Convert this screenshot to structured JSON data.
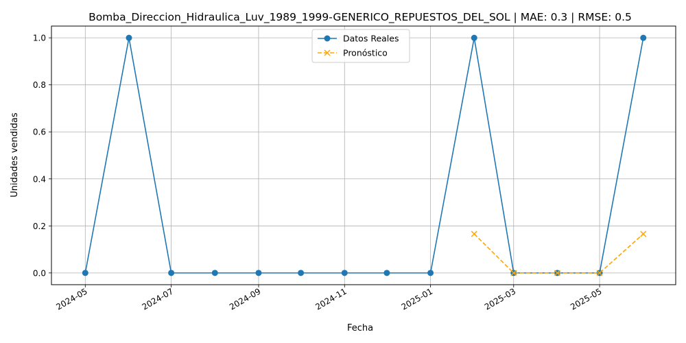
{
  "chart_data": {
    "type": "line",
    "title": "Bomba_Direccion_Hidraulica_Luv_1989_1999-GENERICO_REPUESTOS_DEL_SOL | MAE: 0.3 | RMSE: 0.5",
    "xlabel": "Fecha",
    "ylabel": "Unidades vendidas",
    "xlim": [
      "2024-04-07",
      "2025-06-24"
    ],
    "ylim": [
      -0.05,
      1.05
    ],
    "grid": true,
    "legend_position": "top-center",
    "x_ticks": [
      "2024-05",
      "2024-07",
      "2024-09",
      "2024-11",
      "2025-01",
      "2025-03",
      "2025-05"
    ],
    "x_tick_dates": [
      "2024-05-01",
      "2024-07-01",
      "2024-09-01",
      "2024-11-01",
      "2025-01-01",
      "2025-03-01",
      "2025-05-01"
    ],
    "y_ticks": [
      "0.0",
      "0.2",
      "0.4",
      "0.6",
      "0.8",
      "1.0"
    ],
    "y_tick_values": [
      0.0,
      0.2,
      0.4,
      0.6,
      0.8,
      1.0
    ],
    "series": [
      {
        "name": "Datos Reales",
        "color": "#1f77b4",
        "marker": "circle",
        "linestyle": "solid",
        "x": [
          "2024-05-01",
          "2024-06-01",
          "2024-07-01",
          "2024-08-01",
          "2024-09-01",
          "2024-10-01",
          "2024-11-01",
          "2024-12-01",
          "2025-01-01",
          "2025-02-01",
          "2025-03-01",
          "2025-04-01",
          "2025-05-01",
          "2025-06-01"
        ],
        "y": [
          0,
          1,
          0,
          0,
          0,
          0,
          0,
          0,
          0,
          1,
          0,
          0,
          0,
          1
        ]
      },
      {
        "name": "Pronóstico",
        "color": "#ffa500",
        "marker": "x",
        "linestyle": "dashed",
        "x": [
          "2025-02-01",
          "2025-03-01",
          "2025-04-01",
          "2025-05-01",
          "2025-06-01"
        ],
        "y": [
          0.166,
          0.0,
          0.0,
          0.0,
          0.166
        ]
      }
    ]
  }
}
